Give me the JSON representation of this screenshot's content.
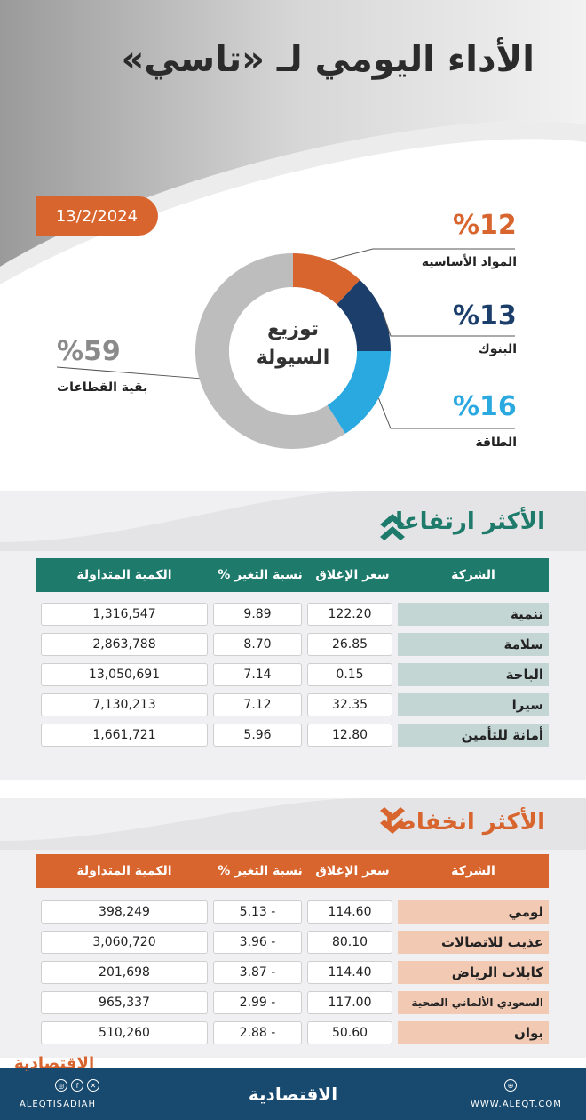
{
  "header": {
    "title": "الأداء اليومي لـ «تاسي»",
    "date": "13/2/2024"
  },
  "colors": {
    "orange": "#d8642e",
    "navy": "#1c3e6b",
    "sky": "#2aa8e0",
    "gray": "#bdbdbd",
    "teal": "#1e7a6a",
    "band": "#f0f0f2"
  },
  "chart_data": {
    "type": "pie",
    "title": "توزيع السيولة",
    "slices": [
      {
        "label": "المواد الأساسية",
        "value": 12,
        "display": "%12",
        "color": "#d8642e"
      },
      {
        "label": "البنوك",
        "value": 13,
        "display": "%13",
        "color": "#1c3e6b"
      },
      {
        "label": "الطاقة",
        "value": 16,
        "display": "%16",
        "color": "#2aa8e0"
      },
      {
        "label": "بقية القطاعات",
        "value": 59,
        "display": "%59",
        "color": "#bdbdbd"
      }
    ]
  },
  "gainers": {
    "title": "الأكثر ارتفاعا",
    "icon": "double-chevron-up-icon",
    "headers": [
      "الشركة",
      "سعر الإغلاق",
      "نسبة التغير %",
      "الكمية المتداولة"
    ],
    "rows": [
      {
        "name": "تنمية",
        "close": "122.20",
        "change": "9.89",
        "volume": "1,316,547"
      },
      {
        "name": "سلامة",
        "close": "26.85",
        "change": "8.70",
        "volume": "2,863,788"
      },
      {
        "name": "الباحة",
        "close": "0.15",
        "change": "7.14",
        "volume": "13,050,691"
      },
      {
        "name": "سيرا",
        "close": "32.35",
        "change": "7.12",
        "volume": "7,130,213"
      },
      {
        "name": "أمانة للتأمين",
        "close": "12.80",
        "change": "5.96",
        "volume": "1,661,721"
      }
    ]
  },
  "losers": {
    "title": "الأكثر انخفاضا",
    "icon": "double-chevron-down-icon",
    "headers": [
      "الشركة",
      "سعر الإغلاق",
      "نسبة التغير %",
      "الكمية المتداولة"
    ],
    "rows": [
      {
        "name": "لومي",
        "close": "114.60",
        "change": "5.13 -",
        "volume": "398,249"
      },
      {
        "name": "عذيب للاتصالات",
        "close": "80.10",
        "change": "3.96 -",
        "volume": "3,060,720"
      },
      {
        "name": "كابلات الرياض",
        "close": "114.40",
        "change": "3.87 -",
        "volume": "201,698"
      },
      {
        "name": "السعودي الألماني الصحية",
        "close": "117.00",
        "change": "2.99 -",
        "volume": "965,337"
      },
      {
        "name": "بوان",
        "close": "50.60",
        "change": "2.88 -",
        "volume": "510,260"
      }
    ]
  },
  "footer": {
    "brand": "الاقتصادية",
    "logo": "الاقتصادية",
    "website": "WWW.ALEQT.COM",
    "social_handle": "ALEQTISADIAH"
  }
}
